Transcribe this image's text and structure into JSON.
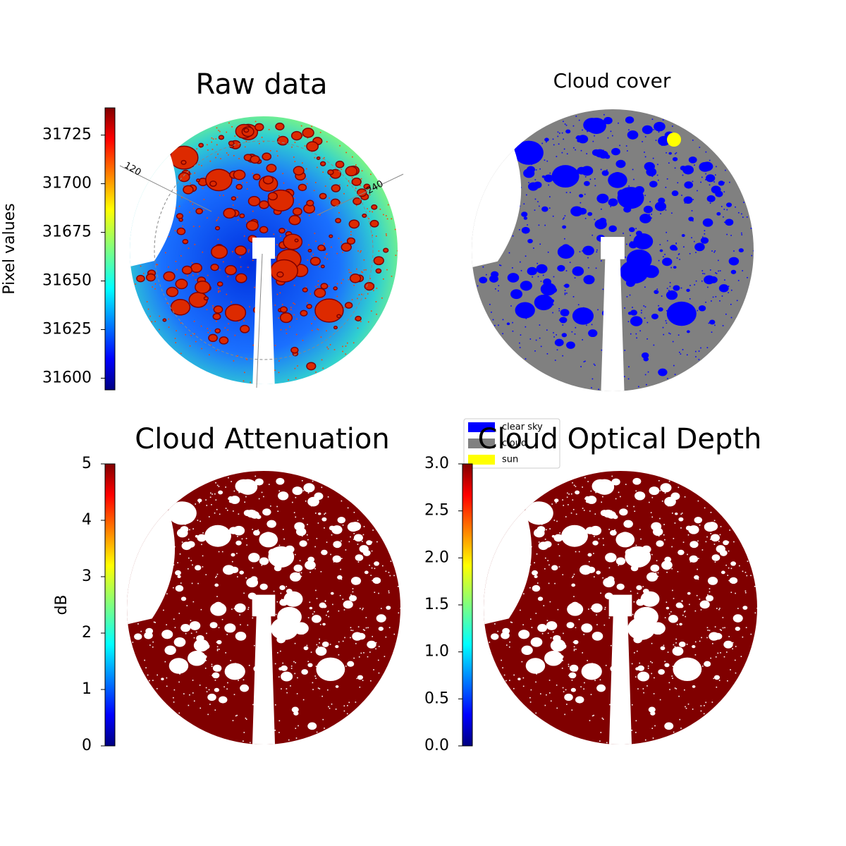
{
  "chart_data": [
    {
      "type": "image",
      "title": "Raw data",
      "annotations": [
        "120",
        "240"
      ],
      "colorbar": {
        "label": "Pixel values",
        "colormap": "jet",
        "lim": [
          31594,
          31739
        ],
        "ticks": [
          31600,
          31625,
          31650,
          31675,
          31700,
          31725
        ]
      }
    },
    {
      "type": "image",
      "title": "Cloud cover",
      "legend": [
        {
          "name": "clear sky",
          "color": "#0000ff"
        },
        {
          "name": "cloud",
          "color": "#808080"
        },
        {
          "name": "sun",
          "color": "#ffff00"
        }
      ]
    },
    {
      "type": "image",
      "title": "Cloud Attenuation",
      "colorbar": {
        "label": "dB",
        "colormap": "jet",
        "lim": [
          0,
          5
        ],
        "ticks": [
          0,
          1,
          2,
          3,
          4,
          5
        ]
      }
    },
    {
      "type": "image",
      "title": "Cloud Optical Depth",
      "colorbar": {
        "colormap": "jet",
        "lim": [
          0,
          3
        ],
        "ticks": [
          {
            "value": 0,
            "label": "0.0"
          },
          0.5,
          {
            "value": 1,
            "label": "1.0"
          },
          1.5,
          {
            "value": 2,
            "label": "2.0"
          },
          2.5,
          {
            "value": 3,
            "label": "3.0"
          }
        ]
      }
    }
  ]
}
